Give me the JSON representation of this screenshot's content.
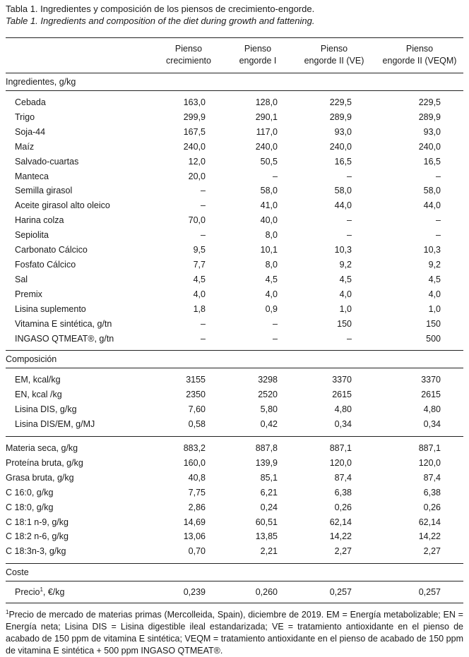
{
  "caption": {
    "es": "Tabla 1. Ingredientes y composición de los piensos de crecimiento-engorde.",
    "en": "Table 1. Ingredients and composition of the diet during growth and fattening."
  },
  "headers": [
    [
      "Pienso",
      "crecimiento"
    ],
    [
      "Pienso",
      "engorde I"
    ],
    [
      "Pienso",
      "engorde II (VE)"
    ],
    [
      "Pienso",
      "engorde II (VEQM)"
    ]
  ],
  "sections": {
    "ingredientes": "Ingredientes, g/kg",
    "composicion": "Composición",
    "coste": "Coste"
  },
  "ingredients": [
    {
      "label": "Cebada",
      "v": [
        "163,0",
        "128,0",
        "229,5",
        "229,5"
      ]
    },
    {
      "label": "Trigo",
      "v": [
        "299,9",
        "290,1",
        "289,9",
        "289,9"
      ]
    },
    {
      "label": "Soja-44",
      "v": [
        "167,5",
        "117,0",
        "93,0",
        "93,0"
      ]
    },
    {
      "label": "Maíz",
      "v": [
        "240,0",
        "240,0",
        "240,0",
        "240,0"
      ]
    },
    {
      "label": "Salvado-cuartas",
      "v": [
        "12,0",
        "50,5",
        "16,5",
        "16,5"
      ]
    },
    {
      "label": "Manteca",
      "v": [
        "20,0",
        "–",
        "–",
        "–"
      ]
    },
    {
      "label": "Semilla girasol",
      "v": [
        "–",
        "58,0",
        "58,0",
        "58,0"
      ]
    },
    {
      "label": "Aceite girasol alto oleico",
      "v": [
        "–",
        "41,0",
        "44,0",
        "44,0"
      ]
    },
    {
      "label": "Harina colza",
      "v": [
        "70,0",
        "40,0",
        "–",
        "–"
      ]
    },
    {
      "label": "Sepiolita",
      "v": [
        "–",
        "8,0",
        "–",
        "–"
      ]
    },
    {
      "label": "Carbonato Cálcico",
      "v": [
        "9,5",
        "10,1",
        "10,3",
        "10,3"
      ]
    },
    {
      "label": "Fosfato Cálcico",
      "v": [
        "7,7",
        "8,0",
        "9,2",
        "9,2"
      ]
    },
    {
      "label": "Sal",
      "v": [
        "4,5",
        "4,5",
        "4,5",
        "4,5"
      ]
    },
    {
      "label": "Premix",
      "v": [
        "4,0",
        "4,0",
        "4,0",
        "4,0"
      ]
    },
    {
      "label": "Lisina suplemento",
      "v": [
        "1,8",
        "0,9",
        "1,0",
        "1,0"
      ]
    },
    {
      "label": "Vitamina E sintética, g/tn",
      "v": [
        "–",
        "–",
        "150",
        "150"
      ]
    },
    {
      "label": "INGASO QTMEAT®, g/tn",
      "v": [
        "–",
        "–",
        "–",
        "500"
      ]
    }
  ],
  "composition": [
    {
      "label": "EM, kcal/kg",
      "v": [
        "3155",
        "3298",
        "3370",
        "3370"
      ]
    },
    {
      "label": "EN, kcal /kg",
      "v": [
        "2350",
        "2520",
        "2615",
        "2615"
      ]
    },
    {
      "label": "Lisina DIS, g/kg",
      "v": [
        "7,60",
        "5,80",
        "4,80",
        "4,80"
      ]
    },
    {
      "label": "Lisina DIS/EM, g/MJ",
      "v": [
        "0,58",
        "0,42",
        "0,34",
        "0,34"
      ]
    }
  ],
  "analysis": [
    {
      "label": "Materia seca, g/kg",
      "v": [
        "883,2",
        "887,8",
        "887,1",
        "887,1"
      ]
    },
    {
      "label": "Proteína bruta, g/kg",
      "v": [
        "160,0",
        "139,9",
        "120,0",
        "120,0"
      ]
    },
    {
      "label": "Grasa bruta, g/kg",
      "v": [
        "40,8",
        "85,1",
        "87,4",
        "87,4"
      ]
    },
    {
      "label": "C 16:0, g/kg",
      "v": [
        "7,75",
        "6,21",
        "6,38",
        "6,38"
      ]
    },
    {
      "label": "C 18:0, g/kg",
      "v": [
        "2,86",
        "0,24",
        "0,26",
        "0,26"
      ]
    },
    {
      "label": "C 18:1 n-9, g/kg",
      "v": [
        "14,69",
        "60,51",
        "62,14",
        "62,14"
      ]
    },
    {
      "label": "C 18:2 n-6, g/kg",
      "v": [
        "13,06",
        "13,85",
        "14,22",
        "14,22"
      ]
    },
    {
      "label": "C 18:3n-3, g/kg",
      "v": [
        "0,70",
        "2,21",
        "2,27",
        "2,27"
      ]
    }
  ],
  "cost": {
    "label": "Precio",
    "sup": "1",
    "unit": ", €/kg",
    "v": [
      "0,239",
      "0,260",
      "0,257",
      "0,257"
    ]
  },
  "footnote": {
    "sup": "1",
    "text": "Precio de mercado de materias primas (Mercolleida, Spain), diciembre de 2019. EM = Energía metabolizable; EN = Energía neta; Lisina DIS = Lisina digestible ileal estandarizada; VE = tratamiento antioxidante en el pienso de acabado de 150 ppm de vitamina E sintética; VEQM = tratamiento antioxidante en el pienso de acabado de 150 ppm de vitamina E sintética + 500 ppm INGASO QTMEAT®."
  }
}
